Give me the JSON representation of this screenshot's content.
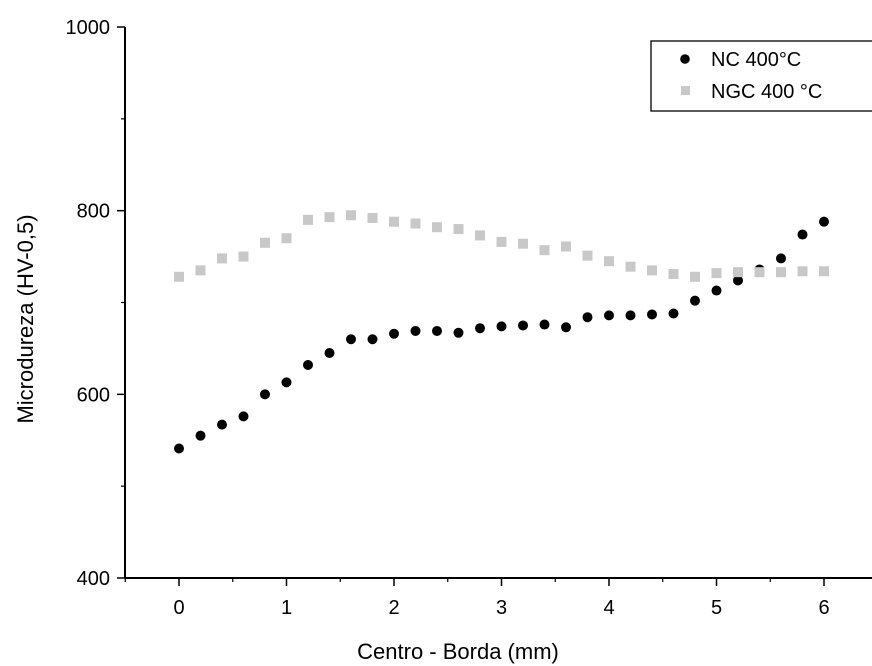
{
  "chart_data": {
    "type": "scatter",
    "xlabel": "Centro - Borda (mm)",
    "ylabel": "Microdureza (HV-0,5)",
    "xlim": [
      -0.5,
      6.5
    ],
    "ylim": [
      400,
      1000
    ],
    "xticks": [
      0,
      1,
      2,
      3,
      4,
      5,
      6
    ],
    "yticks": [
      400,
      600,
      800,
      1000
    ],
    "grid": false,
    "legend_position": "top-right",
    "series": [
      {
        "name": "NC 400°C",
        "marker": "circle",
        "color": "#000000",
        "x": [
          0,
          0.2,
          0.4,
          0.6,
          0.8,
          1.0,
          1.2,
          1.4,
          1.6,
          1.8,
          2.0,
          2.2,
          2.4,
          2.6,
          2.8,
          3.0,
          3.2,
          3.4,
          3.6,
          3.8,
          4.0,
          4.2,
          4.4,
          4.6,
          4.8,
          5.0,
          5.2,
          5.4,
          5.6,
          5.8,
          6.0
        ],
        "y": [
          541,
          555,
          567,
          576,
          600,
          613,
          632,
          645,
          660,
          660,
          666,
          669,
          669,
          667,
          672,
          674,
          675,
          676,
          673,
          684,
          686,
          686,
          687,
          688,
          702,
          713,
          724,
          736,
          748,
          774,
          788
        ]
      },
      {
        "name": "NGC 400 °C",
        "marker": "square",
        "color": "#c8c8c8",
        "x": [
          0,
          0.2,
          0.4,
          0.6,
          0.8,
          1.0,
          1.2,
          1.4,
          1.6,
          1.8,
          2.0,
          2.2,
          2.4,
          2.6,
          2.8,
          3.0,
          3.2,
          3.4,
          3.6,
          3.8,
          4.0,
          4.2,
          4.4,
          4.6,
          4.8,
          5.0,
          5.2,
          5.4,
          5.6,
          5.8,
          6.0
        ],
        "y": [
          728,
          735,
          748,
          750,
          765,
          770,
          790,
          793,
          795,
          792,
          788,
          786,
          782,
          780,
          773,
          766,
          764,
          757,
          761,
          751,
          745,
          739,
          735,
          731,
          728,
          732,
          733,
          733,
          733,
          734,
          734
        ]
      }
    ]
  }
}
